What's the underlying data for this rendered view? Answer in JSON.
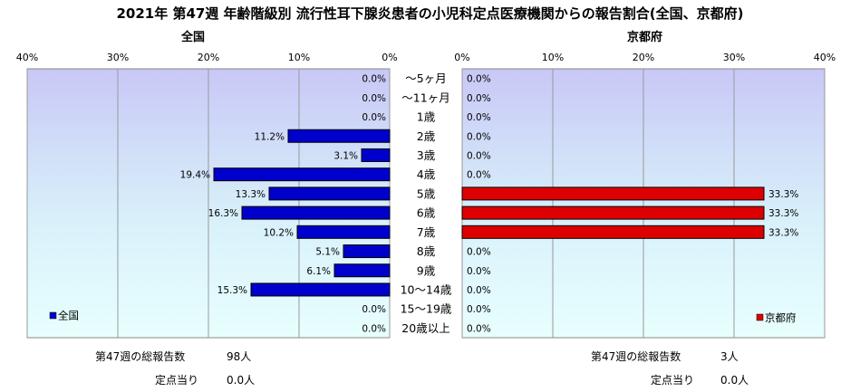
{
  "title": "2021年 第47週 年齢階級別 流行性耳下腺炎患者の小児科定点医療機関からの報告割合(全国、京都府)",
  "panels": {
    "left": {
      "title": "全国",
      "legend": "全国",
      "color": "#0000CC"
    },
    "right": {
      "title": "京都府",
      "legend": "京都府",
      "color": "#DD0000"
    }
  },
  "axis_ticks": [
    "40%",
    "30%",
    "20%",
    "10%",
    "0%",
    "0%",
    "10%",
    "20%",
    "30%",
    "40%"
  ],
  "footer": {
    "left": {
      "total_label": "第47週の総報告数",
      "total_value": "98人",
      "per_label": "定点当り",
      "per_value": "0.0人"
    },
    "right": {
      "total_label": "第47週の総報告数",
      "total_value": "3人",
      "per_label": "定点当り",
      "per_value": "0.0人"
    }
  },
  "chart_data": {
    "type": "bar",
    "orientation": "horizontal",
    "categories": [
      "～5ヶ月",
      "～11ヶ月",
      "1歳",
      "2歳",
      "3歳",
      "4歳",
      "5歳",
      "6歳",
      "7歳",
      "8歳",
      "9歳",
      "10～14歳",
      "15～19歳",
      "20歳以上"
    ],
    "xlim": [
      0,
      40
    ],
    "unit": "%",
    "series": [
      {
        "name": "全国",
        "values": [
          0.0,
          0.0,
          0.0,
          11.2,
          3.1,
          19.4,
          13.3,
          16.3,
          10.2,
          5.1,
          6.1,
          15.3,
          0.0,
          0.0
        ],
        "labels": [
          "0.0%",
          "0.0%",
          "0.0%",
          "11.2%",
          "3.1%",
          "19.4%",
          "13.3%",
          "16.3%",
          "10.2%",
          "5.1%",
          "6.1%",
          "15.3%",
          "0.0%",
          "0.0%"
        ]
      },
      {
        "name": "京都府",
        "values": [
          0.0,
          0.0,
          0.0,
          0.0,
          0.0,
          0.0,
          33.3,
          33.3,
          33.3,
          0.0,
          0.0,
          0.0,
          0.0,
          0.0
        ],
        "labels": [
          "0.0%",
          "0.0%",
          "0.0%",
          "0.0%",
          "0.0%",
          "0.0%",
          "33.3%",
          "33.3%",
          "33.3%",
          "0.0%",
          "0.0%",
          "0.0%",
          "0.0%",
          "0.0%"
        ]
      }
    ]
  }
}
